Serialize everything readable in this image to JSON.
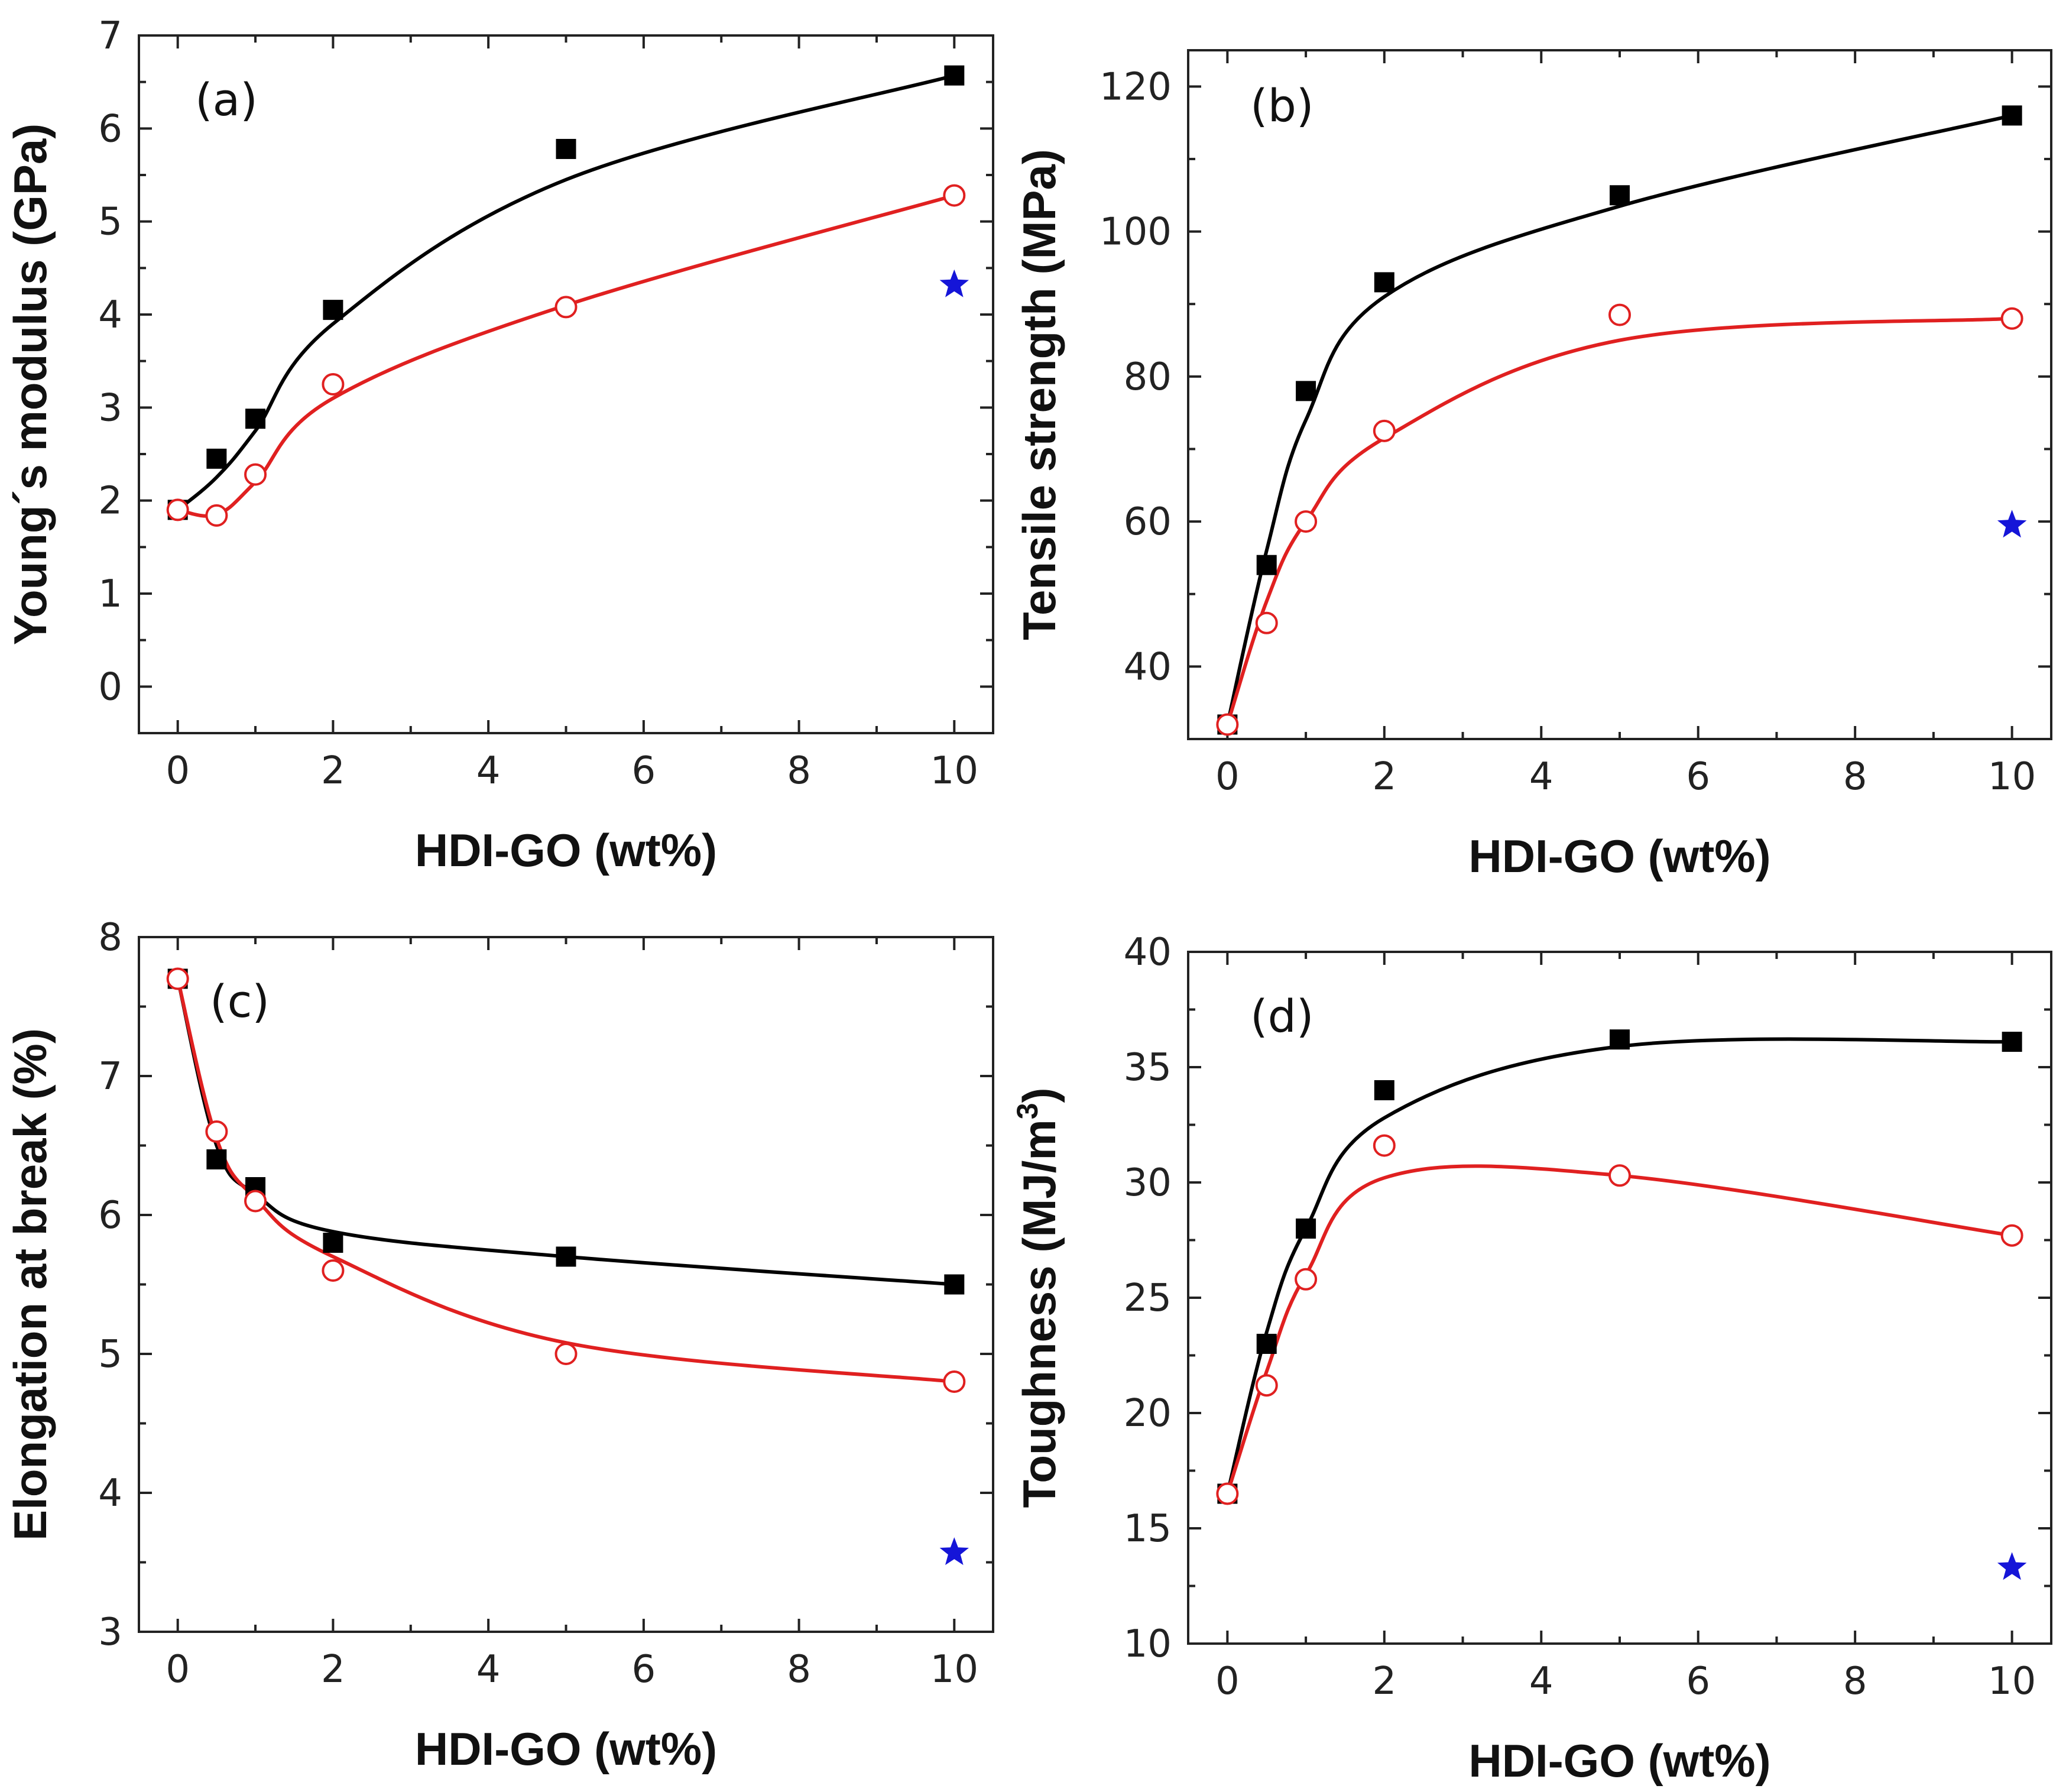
{
  "chart_data": [
    {
      "type": "scatter",
      "panel_label": "(a)",
      "xlabel": "HDI-GO (wt%)",
      "ylabel": "Young´s modulus (GPa)",
      "xlim": [
        -0.5,
        10.5
      ],
      "ylim": [
        -0.5,
        7
      ],
      "xticks": [
        0,
        2,
        4,
        6,
        8,
        10
      ],
      "yticks": [
        0,
        1,
        2,
        3,
        4,
        5,
        6,
        7
      ],
      "series": [
        {
          "name": "black squares",
          "marker": "square-filled",
          "color": "#000000",
          "x": [
            0,
            0.5,
            1,
            2,
            5,
            10
          ],
          "y": [
            1.9,
            2.45,
            2.88,
            4.05,
            5.78,
            6.57
          ],
          "fit_y": [
            1.9,
            2.25,
            2.75,
            3.9,
            5.45,
            6.57
          ]
        },
        {
          "name": "red circles",
          "marker": "circle-open",
          "color": "#e02020",
          "x": [
            0,
            0.5,
            1,
            2,
            5,
            10
          ],
          "y": [
            1.9,
            1.84,
            2.28,
            3.25,
            4.08,
            5.28
          ],
          "fit_y": [
            1.9,
            1.85,
            2.2,
            3.1,
            4.1,
            5.28
          ]
        },
        {
          "name": "blue star",
          "marker": "star",
          "color": "#1515d8",
          "x": [
            10
          ],
          "y": [
            4.32
          ]
        }
      ]
    },
    {
      "type": "scatter",
      "panel_label": "(b)",
      "xlabel": "HDI-GO (wt%)",
      "ylabel": "Tensile strength (MPa)",
      "xlim": [
        -0.5,
        10.5
      ],
      "ylim": [
        30,
        125
      ],
      "xticks": [
        0,
        2,
        4,
        6,
        8,
        10
      ],
      "yticks": [
        40,
        60,
        80,
        100,
        120
      ],
      "series": [
        {
          "name": "black squares",
          "marker": "square-filled",
          "color": "#000000",
          "x": [
            0,
            0.5,
            1,
            2,
            5,
            10
          ],
          "y": [
            32,
            54,
            78,
            93,
            105,
            116
          ],
          "fit_y": [
            32,
            56,
            74,
            91,
            103.5,
            116
          ]
        },
        {
          "name": "red circles",
          "marker": "circle-open",
          "color": "#e02020",
          "x": [
            0,
            0.5,
            1,
            2,
            5,
            10
          ],
          "y": [
            32,
            46,
            60,
            72.5,
            88.5,
            88
          ],
          "fit_y": [
            32,
            49,
            60,
            71.5,
            85,
            88
          ]
        },
        {
          "name": "blue star",
          "marker": "star",
          "color": "#1515d8",
          "x": [
            10
          ],
          "y": [
            59.5
          ]
        }
      ]
    },
    {
      "type": "scatter",
      "panel_label": "(c)",
      "xlabel": "HDI-GO (wt%)",
      "ylabel": "Elongation at break (%)",
      "xlim": [
        -0.5,
        10.5
      ],
      "ylim": [
        3,
        8
      ],
      "xticks": [
        0,
        2,
        4,
        6,
        8,
        10
      ],
      "yticks": [
        3,
        4,
        5,
        6,
        7,
        8
      ],
      "series": [
        {
          "name": "black squares",
          "marker": "square-filled",
          "color": "#000000",
          "x": [
            0,
            0.5,
            1,
            2,
            5,
            10
          ],
          "y": [
            7.7,
            6.4,
            6.2,
            5.8,
            5.7,
            5.5
          ],
          "fit_y": [
            7.7,
            6.5,
            6.15,
            5.88,
            5.7,
            5.5
          ]
        },
        {
          "name": "red circles",
          "marker": "circle-open",
          "color": "#e02020",
          "x": [
            0,
            0.5,
            1,
            2,
            5,
            10
          ],
          "y": [
            7.7,
            6.6,
            6.1,
            5.6,
            5.0,
            4.8
          ],
          "fit_y": [
            7.7,
            6.55,
            6.12,
            5.7,
            5.08,
            4.8
          ]
        },
        {
          "name": "blue star",
          "marker": "star",
          "color": "#1515d8",
          "x": [
            10
          ],
          "y": [
            3.57
          ]
        }
      ]
    },
    {
      "type": "scatter",
      "panel_label": "(d)",
      "xlabel": "HDI-GO (wt%)",
      "ylabel": "Toughness (MJ/m",
      "ylabel_superscript": "3",
      "ylabel_suffix": ")",
      "xlim": [
        -0.5,
        10.5
      ],
      "ylim": [
        10,
        40
      ],
      "xticks": [
        0,
        2,
        4,
        6,
        8,
        10
      ],
      "yticks": [
        10,
        15,
        20,
        25,
        30,
        35,
        40
      ],
      "series": [
        {
          "name": "black squares",
          "marker": "square-filled",
          "color": "#000000",
          "x": [
            0,
            0.5,
            1,
            2,
            5,
            10
          ],
          "y": [
            16.5,
            23,
            28,
            34,
            36.2,
            36.1
          ],
          "fit_y": [
            16.5,
            23.5,
            28,
            32.8,
            35.9,
            36.1
          ]
        },
        {
          "name": "red circles",
          "marker": "circle-open",
          "color": "#e02020",
          "x": [
            0,
            0.5,
            1,
            2,
            5,
            10
          ],
          "y": [
            16.5,
            21.2,
            25.8,
            31.6,
            30.3,
            27.7
          ],
          "fit_y": [
            16.5,
            21.8,
            26,
            30.2,
            30.3,
            27.7
          ]
        },
        {
          "name": "blue star",
          "marker": "star",
          "color": "#1515d8",
          "x": [
            10
          ],
          "y": [
            13.3
          ]
        }
      ]
    }
  ]
}
